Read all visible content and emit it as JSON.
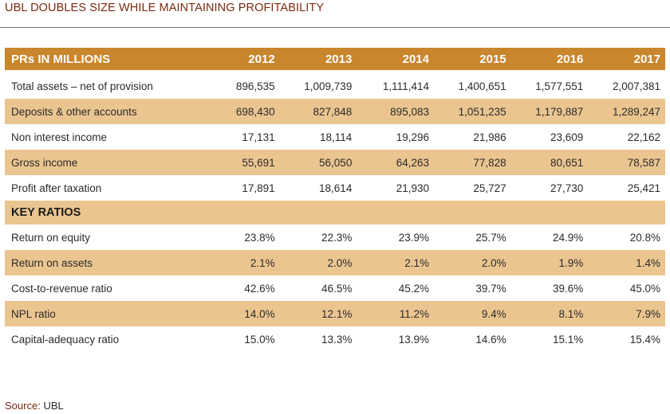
{
  "title": "UBL DOUBLES SIZE WHILE MAINTAINING PROFITABILITY",
  "table": {
    "header_label": "PRs IN MILLIONS",
    "years": [
      "2012",
      "2013",
      "2014",
      "2015",
      "2016",
      "2017"
    ],
    "rows": [
      {
        "label": "Total assets – net of provision",
        "values": [
          "896,535",
          "1,009,739",
          "1,111,414",
          "1,400,651",
          "1,577,551",
          "2,007,381"
        ]
      },
      {
        "label": "Deposits & other accounts",
        "values": [
          "698,430",
          "827,848",
          "895,083",
          "1,051,235",
          "1,179,887",
          "1,289,247"
        ]
      },
      {
        "label": "Non interest income",
        "values": [
          "17,131",
          "18,114",
          "19,296",
          "21,986",
          "23,609",
          "22,162"
        ]
      },
      {
        "label": "Gross income",
        "values": [
          "55,691",
          "56,050",
          "64,263",
          "77,828",
          "80,651",
          "78,587"
        ]
      },
      {
        "label": "Profit after taxation",
        "values": [
          "17,891",
          "18,614",
          "21,930",
          "25,727",
          "27,730",
          "25,421"
        ]
      }
    ],
    "section_label": "KEY RATIOS",
    "ratio_rows": [
      {
        "label": "Return on equity",
        "values": [
          "23.8%",
          "22.3%",
          "23.9%",
          "25.7%",
          "24.9%",
          "20.8%"
        ]
      },
      {
        "label": "Return on assets",
        "values": [
          "2.1%",
          "2.0%",
          "2.1%",
          "2.0%",
          "1.9%",
          "1.4%"
        ]
      },
      {
        "label": "Cost-to-revenue ratio",
        "values": [
          "42.6%",
          "46.5%",
          "45.2%",
          "39.7%",
          "39.6%",
          "45.0%"
        ]
      },
      {
        "label": "NPL ratio",
        "values": [
          "14.0%",
          "12.1%",
          "11.2%",
          "9.4%",
          "8.1%",
          "7.9%"
        ]
      },
      {
        "label": "Capital-adequacy ratio",
        "values": [
          "15.0%",
          "13.3%",
          "13.9%",
          "14.6%",
          "15.1%",
          "15.4%"
        ]
      }
    ]
  },
  "source": {
    "prefix": "Source:",
    "value": "UBL"
  },
  "colors": {
    "header": "#c9862d",
    "shade": "#ebc590",
    "title": "#7a2a10"
  }
}
